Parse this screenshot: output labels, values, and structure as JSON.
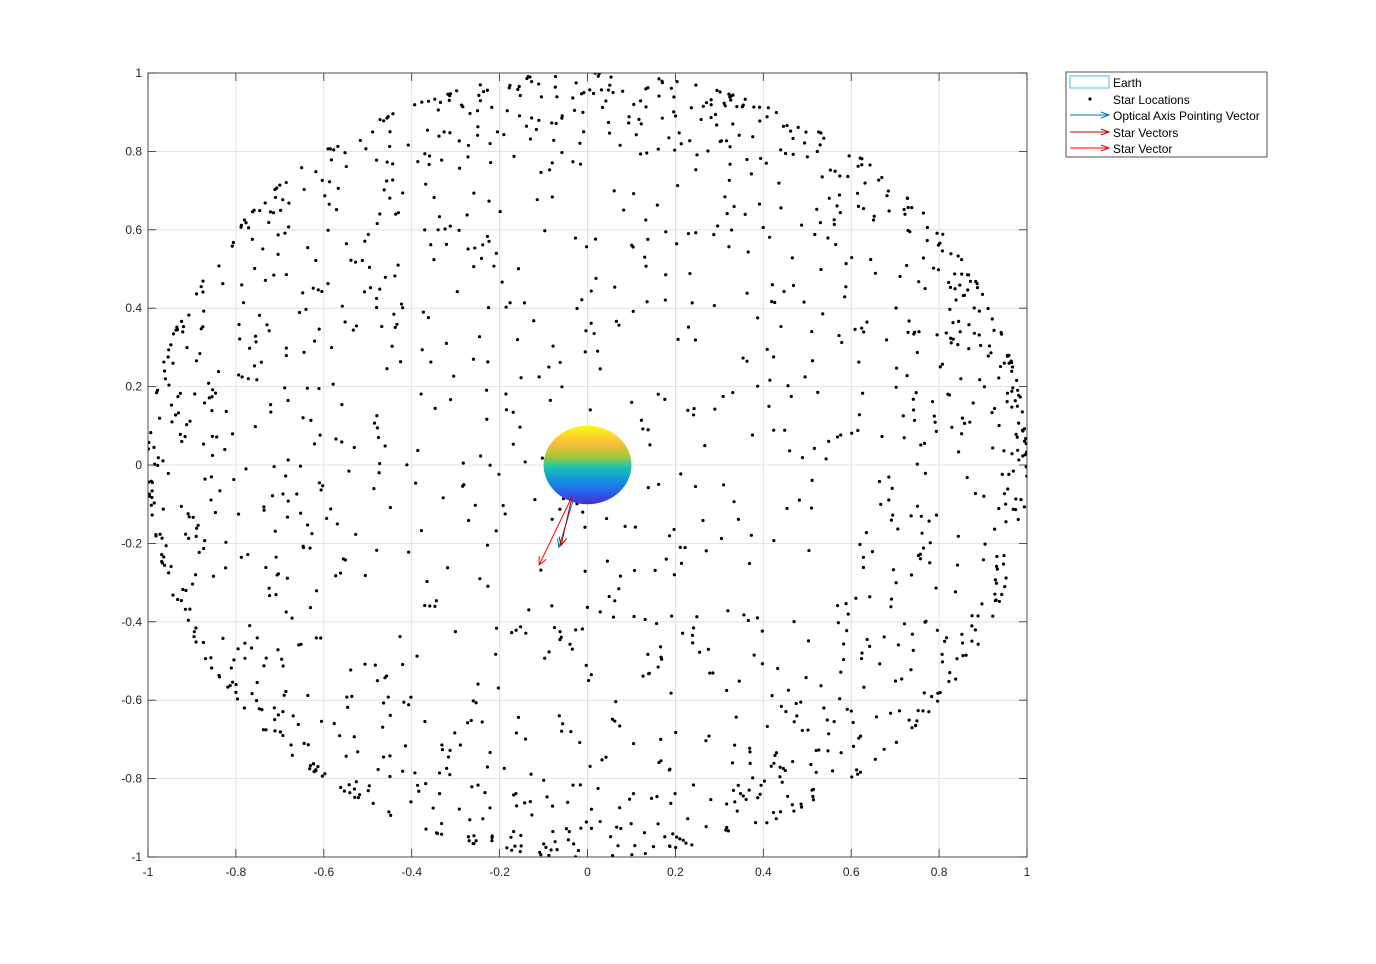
{
  "chart_data": {
    "type": "scatter",
    "title": "",
    "xlabel": "",
    "ylabel": "",
    "xlim": [
      -1,
      1
    ],
    "ylim": [
      -1,
      1
    ],
    "grid": true,
    "x_ticks": [
      -1,
      -0.8,
      -0.6,
      -0.4,
      -0.2,
      0,
      0.2,
      0.4,
      0.6,
      0.8,
      1
    ],
    "y_ticks": [
      -1,
      -0.8,
      -0.6,
      -0.4,
      -0.2,
      0,
      0.2,
      0.4,
      0.6,
      0.8,
      1
    ],
    "x_tick_labels": [
      "-1",
      "-0.8",
      "-0.6",
      "-0.4",
      "-0.2",
      "0",
      "0.2",
      "0.4",
      "0.6",
      "0.8",
      "1"
    ],
    "y_tick_labels": [
      "-1",
      "-0.8",
      "-0.6",
      "-0.4",
      "-0.2",
      "0",
      "0.2",
      "0.4",
      "0.6",
      "0.8",
      "1"
    ],
    "legend_location": "outside-top-right",
    "legend": [
      {
        "label": "Earth",
        "kind": "patch",
        "color": "#4dbeee"
      },
      {
        "label": "Star Locations",
        "kind": "marker",
        "color": "#000000"
      },
      {
        "label": "Optical Axis Pointing Vector",
        "kind": "arrow",
        "color": "#0072bd"
      },
      {
        "label": "Star Vectors",
        "kind": "arrow",
        "color": "#c00000"
      },
      {
        "label": "Star Vector",
        "kind": "arrow",
        "color": "#ff0000"
      }
    ],
    "earth": {
      "center": [
        0,
        0
      ],
      "radius_x": 0.1,
      "radius_y": 0.1,
      "colormap": [
        "#f9fb0e",
        "#fbbc3b",
        "#a0c73b",
        "#1ec5ac",
        "#1496dc",
        "#2464ec",
        "#4a2dc8"
      ]
    },
    "stars": {
      "count": 1500,
      "distribution": "points on unit sphere viewed along axis (projected disk, denser near rim)",
      "color": "#000000"
    },
    "vectors": [
      {
        "name": "Optical Axis Pointing Vector",
        "from": [
          -0.03,
          -0.08
        ],
        "to": [
          -0.065,
          -0.21
        ],
        "color": "#0072bd"
      },
      {
        "name": "Star Vectors",
        "from": [
          -0.035,
          -0.08
        ],
        "to": [
          -0.06,
          -0.205
        ],
        "color": "#c00000"
      },
      {
        "name": "Star Vector",
        "from": [
          -0.035,
          -0.08
        ],
        "to": [
          -0.11,
          -0.255
        ],
        "color": "#ff0000"
      }
    ]
  }
}
